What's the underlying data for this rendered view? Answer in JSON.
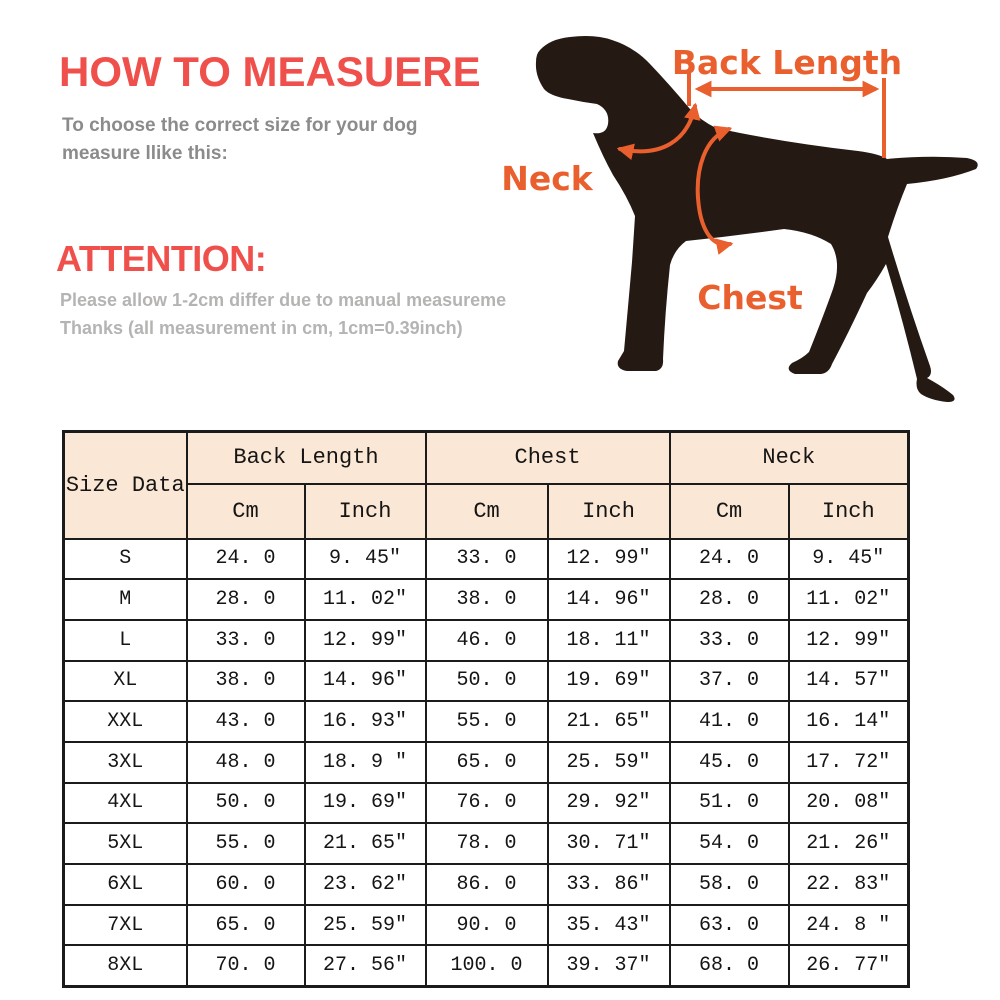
{
  "how_to": {
    "title": "HOW TO MEASUERE",
    "subtitle_line1": "To choose the correct size for your dog",
    "subtitle_line2": "measure llike this:"
  },
  "attention": {
    "title": "ATTENTION:",
    "line1": "Please allow 1-2cm differ due to manual measureme",
    "line2": "Thanks (all measurement in cm, 1cm=0.39inch)"
  },
  "diagram": {
    "labels": {
      "back_length": "Back Length",
      "neck": "Neck",
      "chest": "Chest"
    }
  },
  "table": {
    "corner_label": "Size Data",
    "groups": [
      {
        "label": "Back Length"
      },
      {
        "label": "Chest"
      },
      {
        "label": "Neck"
      }
    ],
    "subheaders": [
      "Cm",
      "Inch",
      "Cm",
      "Inch",
      "Cm",
      "Inch"
    ],
    "rows": [
      {
        "size": "S",
        "values": [
          "24. 0",
          "9. 45″",
          "33. 0",
          "12. 99″",
          "24. 0",
          "9. 45″"
        ]
      },
      {
        "size": "M",
        "values": [
          "28. 0",
          "11. 02″",
          "38. 0",
          "14. 96″",
          "28. 0",
          "11. 02″"
        ]
      },
      {
        "size": "L",
        "values": [
          "33. 0",
          "12. 99″",
          "46. 0",
          "18. 11″",
          "33. 0",
          "12. 99″"
        ]
      },
      {
        "size": "XL",
        "values": [
          "38. 0",
          "14. 96″",
          "50. 0",
          "19. 69″",
          "37. 0",
          "14. 57″"
        ]
      },
      {
        "size": "XXL",
        "values": [
          "43. 0",
          "16. 93″",
          "55. 0",
          "21. 65″",
          "41. 0",
          "16. 14″"
        ]
      },
      {
        "size": "3XL",
        "values": [
          "48. 0",
          "18. 9 ″",
          "65. 0",
          "25. 59″",
          "45. 0",
          "17. 72″"
        ]
      },
      {
        "size": "4XL",
        "values": [
          "50. 0",
          "19. 69″",
          "76. 0",
          "29. 92″",
          "51. 0",
          "20. 08″"
        ]
      },
      {
        "size": "5XL",
        "values": [
          "55. 0",
          "21. 65″",
          "78. 0",
          "30. 71″",
          "54. 0",
          "21. 26″"
        ]
      },
      {
        "size": "6XL",
        "values": [
          "60. 0",
          "23. 62″",
          "86. 0",
          "33. 86″",
          "58. 0",
          "22. 83″"
        ]
      },
      {
        "size": "7XL",
        "values": [
          "65. 0",
          "25. 59″",
          "90. 0",
          "35. 43″",
          "63. 0",
          "24. 8 ″"
        ]
      },
      {
        "size": "8XL",
        "values": [
          "70. 0",
          "27. 56″",
          "100. 0",
          "39. 37″",
          "68. 0",
          "26. 77″"
        ]
      }
    ]
  },
  "colors": {
    "accent_red": "#f0504b",
    "annotation_orange": "#e95f2d",
    "subtitle_gray": "#8b8b8b",
    "note_gray": "#b5b4b2",
    "table_header_bg": "#fbe7d5",
    "table_border": "#1b1b1b",
    "dog_silhouette": "#251a13"
  }
}
